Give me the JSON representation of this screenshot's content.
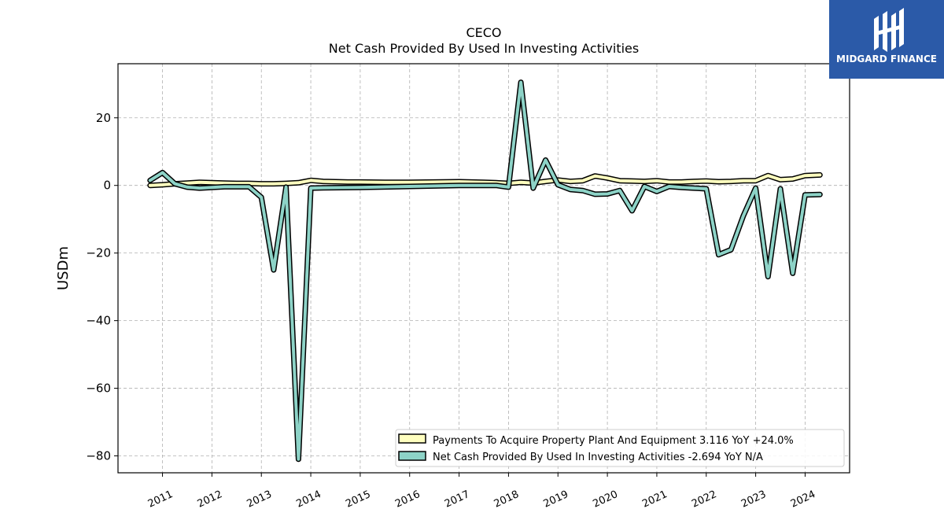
{
  "chart_data": {
    "type": "line",
    "title": "CECO",
    "subtitle": "Net Cash Provided By Used In Investing Activities",
    "ylabel": "USDm",
    "xlabel": "",
    "xlim": [
      2010.1,
      2024.9
    ],
    "ylim": [
      -85,
      36
    ],
    "y_ticks": [
      20,
      0,
      -20,
      -40,
      -60,
      -80
    ],
    "y_tick_labels": [
      "20",
      "0",
      "−20",
      "−40",
      "−60",
      "−80"
    ],
    "x_ticks": [
      2011,
      2012,
      2013,
      2014,
      2015,
      2016,
      2017,
      2018,
      2019,
      2020,
      2021,
      2022,
      2023,
      2024
    ],
    "x_tick_labels": [
      "2011",
      "2012",
      "2013",
      "2014",
      "2015",
      "2016",
      "2017",
      "2018",
      "2019",
      "2020",
      "2021",
      "2022",
      "2023",
      "2024"
    ],
    "grid": true,
    "legend_position": "lower-right",
    "series": [
      {
        "name": "Payments To Acquire Property Plant And Equipment  3.116 YoY +24.0%",
        "color": "#ffffbf",
        "points": [
          [
            2010.75,
            0
          ],
          [
            2011.0,
            0.2
          ],
          [
            2011.25,
            0.5
          ],
          [
            2011.5,
            0.7
          ],
          [
            2011.75,
            0.9
          ],
          [
            2012.0,
            0.8
          ],
          [
            2012.25,
            0.7
          ],
          [
            2012.5,
            0.6
          ],
          [
            2012.75,
            0.6
          ],
          [
            2013.0,
            0.5
          ],
          [
            2013.25,
            0.5
          ],
          [
            2013.5,
            0.6
          ],
          [
            2013.75,
            0.8
          ],
          [
            2014.0,
            1.5
          ],
          [
            2014.25,
            1.2
          ],
          [
            2014.5,
            1.1
          ],
          [
            2014.75,
            1.0
          ],
          [
            2015.0,
            1.0
          ],
          [
            2015.5,
            0.9
          ],
          [
            2016.0,
            0.9
          ],
          [
            2016.5,
            1.0
          ],
          [
            2017.0,
            1.1
          ],
          [
            2017.5,
            0.9
          ],
          [
            2017.75,
            0.8
          ],
          [
            2018.0,
            0.6
          ],
          [
            2018.25,
            0.9
          ],
          [
            2018.5,
            0.7
          ],
          [
            2018.75,
            1.2
          ],
          [
            2019.0,
            1.6
          ],
          [
            2019.25,
            1.2
          ],
          [
            2019.5,
            1.4
          ],
          [
            2019.75,
            2.8
          ],
          [
            2020.0,
            2.2
          ],
          [
            2020.25,
            1.4
          ],
          [
            2020.5,
            1.3
          ],
          [
            2020.75,
            1.2
          ],
          [
            2021.0,
            1.4
          ],
          [
            2021.25,
            1.0
          ],
          [
            2021.5,
            1.0
          ],
          [
            2021.75,
            1.2
          ],
          [
            2022.0,
            1.3
          ],
          [
            2022.25,
            1.1
          ],
          [
            2022.5,
            1.2
          ],
          [
            2022.75,
            1.4
          ],
          [
            2023.0,
            1.4
          ],
          [
            2023.25,
            2.9
          ],
          [
            2023.5,
            1.7
          ],
          [
            2023.75,
            1.9
          ],
          [
            2024.0,
            2.9
          ],
          [
            2024.3,
            3.1
          ]
        ]
      },
      {
        "name": "Net Cash Provided By Used In Investing Activities  -2.694 YoY N/A",
        "color": "#8dd3c7",
        "points": [
          [
            2010.75,
            1.5
          ],
          [
            2011.0,
            3.8
          ],
          [
            2011.25,
            0.5
          ],
          [
            2011.5,
            -0.5
          ],
          [
            2011.75,
            -0.8
          ],
          [
            2012.0,
            -0.6
          ],
          [
            2012.25,
            -0.4
          ],
          [
            2012.5,
            -0.4
          ],
          [
            2012.75,
            -0.4
          ],
          [
            2013.0,
            -3.5
          ],
          [
            2013.25,
            -25
          ],
          [
            2013.5,
            -0.5
          ],
          [
            2013.75,
            -81
          ],
          [
            2014.0,
            -0.8
          ],
          [
            2014.25,
            -0.7
          ],
          [
            2015.0,
            -0.6
          ],
          [
            2016.0,
            -0.3
          ],
          [
            2017.0,
            0
          ],
          [
            2017.75,
            0
          ],
          [
            2018.0,
            -0.5
          ],
          [
            2018.25,
            30.5
          ],
          [
            2018.5,
            -0.8
          ],
          [
            2018.75,
            7.5
          ],
          [
            2019.0,
            0.2
          ],
          [
            2019.25,
            -1.2
          ],
          [
            2019.5,
            -1.5
          ],
          [
            2019.75,
            -2.6
          ],
          [
            2020.0,
            -2.5
          ],
          [
            2020.25,
            -1.5
          ],
          [
            2020.5,
            -7.5
          ],
          [
            2020.75,
            -0.3
          ],
          [
            2021.0,
            -1.8
          ],
          [
            2021.25,
            -0.3
          ],
          [
            2021.5,
            -0.6
          ],
          [
            2021.75,
            -0.8
          ],
          [
            2022.0,
            -1.0
          ],
          [
            2022.25,
            -20.5
          ],
          [
            2022.5,
            -19
          ],
          [
            2022.75,
            -9
          ],
          [
            2023.0,
            -0.8
          ],
          [
            2023.25,
            -27
          ],
          [
            2023.5,
            -1.0
          ],
          [
            2023.75,
            -26
          ],
          [
            2024.0,
            -2.8
          ],
          [
            2024.3,
            -2.7
          ]
        ]
      }
    ]
  },
  "logo": {
    "text": "MIDGARD FINANCE"
  }
}
